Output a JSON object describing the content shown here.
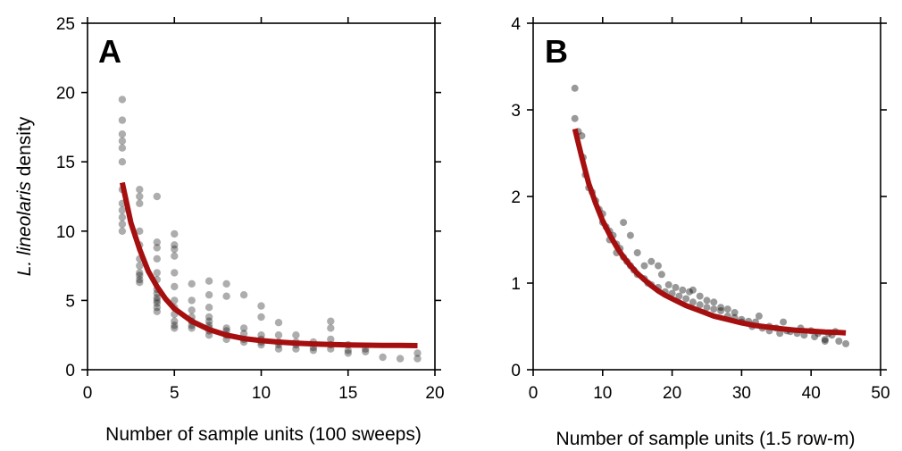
{
  "chart_data": [
    {
      "type": "scatter",
      "panel_label": "A",
      "xlabel": "Number of sample units (100 sweeps)",
      "ylabel_italic": "L. lineolaris",
      "ylabel_rest": " density",
      "xlim": [
        0,
        20
      ],
      "ylim": [
        0,
        25
      ],
      "x_ticks": [
        0,
        5,
        10,
        15,
        20
      ],
      "y_ticks": [
        0,
        5,
        10,
        15,
        20,
        25
      ],
      "grid": false,
      "point_color": "#000000",
      "line_color": "#a50f0f",
      "series": [
        {
          "kind": "points",
          "points": [
            [
              2,
              19.5
            ],
            [
              2,
              18
            ],
            [
              2,
              17
            ],
            [
              2,
              16.5
            ],
            [
              2,
              16
            ],
            [
              2,
              15
            ],
            [
              2,
              13
            ],
            [
              2,
              12
            ],
            [
              2,
              11.5
            ],
            [
              2,
              11
            ],
            [
              2,
              10.5
            ],
            [
              2,
              10
            ],
            [
              3,
              13
            ],
            [
              3,
              12.5
            ],
            [
              3,
              12
            ],
            [
              3,
              10
            ],
            [
              3,
              9
            ],
            [
              3,
              8
            ],
            [
              3,
              7.5
            ],
            [
              3,
              7
            ],
            [
              3,
              6.8
            ],
            [
              3,
              6.5
            ],
            [
              3,
              6.3
            ],
            [
              4,
              12.5
            ],
            [
              4,
              9.2
            ],
            [
              4,
              8.8
            ],
            [
              4,
              8
            ],
            [
              4,
              7
            ],
            [
              4,
              6.5
            ],
            [
              4,
              5.8
            ],
            [
              4,
              5.5
            ],
            [
              4,
              5.2
            ],
            [
              4,
              5
            ],
            [
              4,
              4.8
            ],
            [
              4,
              4.5
            ],
            [
              4,
              4.2
            ],
            [
              5,
              9.8
            ],
            [
              5,
              9
            ],
            [
              5,
              8.7
            ],
            [
              5,
              8.2
            ],
            [
              5,
              7
            ],
            [
              5,
              6
            ],
            [
              5,
              5
            ],
            [
              5,
              4.5
            ],
            [
              5,
              4
            ],
            [
              5,
              3.5
            ],
            [
              5,
              3.2
            ],
            [
              5,
              3
            ],
            [
              6,
              6.2
            ],
            [
              6,
              5
            ],
            [
              6,
              4.3
            ],
            [
              6,
              3.8
            ],
            [
              6,
              3.5
            ],
            [
              6,
              3.2
            ],
            [
              6,
              3
            ],
            [
              7,
              6.4
            ],
            [
              7,
              5.4
            ],
            [
              7,
              4.5
            ],
            [
              7,
              3.8
            ],
            [
              7,
              3.5
            ],
            [
              7,
              3.2
            ],
            [
              7,
              3
            ],
            [
              7,
              2.8
            ],
            [
              7,
              2.5
            ],
            [
              8,
              6.2
            ],
            [
              8,
              5.3
            ],
            [
              8,
              3
            ],
            [
              8,
              2.8
            ],
            [
              8,
              2.5
            ],
            [
              8,
              2.2
            ],
            [
              9,
              5.4
            ],
            [
              9,
              3
            ],
            [
              9,
              2.6
            ],
            [
              9,
              2.2
            ],
            [
              9,
              2
            ],
            [
              10,
              4.6
            ],
            [
              10,
              3.8
            ],
            [
              10,
              2.5
            ],
            [
              10,
              2.2
            ],
            [
              10,
              2
            ],
            [
              10,
              1.8
            ],
            [
              11,
              3.4
            ],
            [
              11,
              2.5
            ],
            [
              11,
              2
            ],
            [
              11,
              1.8
            ],
            [
              11,
              1.5
            ],
            [
              12,
              2.5
            ],
            [
              12,
              2
            ],
            [
              12,
              1.8
            ],
            [
              12,
              1.5
            ],
            [
              13,
              2
            ],
            [
              13,
              1.6
            ],
            [
              13,
              1.4
            ],
            [
              14,
              3.5
            ],
            [
              14,
              3
            ],
            [
              14,
              2.2
            ],
            [
              14,
              1.8
            ],
            [
              14,
              1.5
            ],
            [
              15,
              1.8
            ],
            [
              15,
              1.4
            ],
            [
              15,
              1.2
            ],
            [
              16,
              1.5
            ],
            [
              16,
              1.3
            ],
            [
              17,
              0.9
            ],
            [
              18,
              0.8
            ],
            [
              19,
              1.2
            ],
            [
              19,
              0.8
            ]
          ]
        },
        {
          "kind": "fit-line",
          "points": [
            [
              2,
              13.5
            ],
            [
              2.5,
              10.6
            ],
            [
              3,
              8.7
            ],
            [
              3.5,
              7.1
            ],
            [
              4,
              6
            ],
            [
              4.5,
              5.1
            ],
            [
              5,
              4.4
            ],
            [
              6,
              3.5
            ],
            [
              7,
              2.9
            ],
            [
              8,
              2.5
            ],
            [
              9,
              2.25
            ],
            [
              10,
              2.1
            ],
            [
              11,
              2
            ],
            [
              12,
              1.92
            ],
            [
              13,
              1.86
            ],
            [
              14,
              1.82
            ],
            [
              15,
              1.79
            ],
            [
              16,
              1.77
            ],
            [
              17,
              1.76
            ],
            [
              18,
              1.75
            ],
            [
              19,
              1.74
            ]
          ]
        }
      ]
    },
    {
      "type": "scatter",
      "panel_label": "B",
      "xlabel": "Number of sample units (1.5 row-m)",
      "xlim": [
        0,
        50
      ],
      "ylim": [
        0,
        4
      ],
      "x_ticks": [
        0,
        10,
        20,
        30,
        40,
        50
      ],
      "y_ticks": [
        0,
        1,
        2,
        3,
        4
      ],
      "grid": false,
      "point_color": "#000000",
      "line_color": "#a50f0f",
      "series": [
        {
          "kind": "points",
          "points": [
            [
              6,
              3.25
            ],
            [
              6,
              2.9
            ],
            [
              6.5,
              2.75
            ],
            [
              7,
              2.7
            ],
            [
              7.2,
              2.45
            ],
            [
              7.5,
              2.25
            ],
            [
              8,
              2.1
            ],
            [
              8.5,
              2.05
            ],
            [
              9,
              1.95
            ],
            [
              9.5,
              1.85
            ],
            [
              10,
              1.8
            ],
            [
              10,
              1.7
            ],
            [
              10.5,
              1.65
            ],
            [
              11,
              1.6
            ],
            [
              11,
              1.5
            ],
            [
              11.5,
              1.55
            ],
            [
              12,
              1.45
            ],
            [
              12,
              1.35
            ],
            [
              12.5,
              1.4
            ],
            [
              13,
              1.7
            ],
            [
              13,
              1.3
            ],
            [
              13.5,
              1.25
            ],
            [
              14,
              1.55
            ],
            [
              14,
              1.2
            ],
            [
              14.5,
              1.15
            ],
            [
              15,
              1.35
            ],
            [
              15,
              1.1
            ],
            [
              16,
              1.2
            ],
            [
              16,
              1.05
            ],
            [
              16.5,
              1.0
            ],
            [
              17,
              1.25
            ],
            [
              17,
              0.98
            ],
            [
              18,
              1.2
            ],
            [
              18,
              0.95
            ],
            [
              18.5,
              1.1
            ],
            [
              19,
              0.9
            ],
            [
              19.5,
              0.98
            ],
            [
              20,
              0.88
            ],
            [
              20.5,
              0.95
            ],
            [
              21,
              0.85
            ],
            [
              21.5,
              0.92
            ],
            [
              22,
              0.82
            ],
            [
              22.5,
              0.9
            ],
            [
              23,
              0.78
            ],
            [
              23,
              0.92
            ],
            [
              24,
              0.75
            ],
            [
              24,
              0.85
            ],
            [
              25,
              0.72
            ],
            [
              25,
              0.8
            ],
            [
              26,
              0.7
            ],
            [
              26,
              0.78
            ],
            [
              27,
              0.68
            ],
            [
              27,
              0.72
            ],
            [
              28,
              0.62
            ],
            [
              28,
              0.7
            ],
            [
              29,
              0.6
            ],
            [
              29,
              0.66
            ],
            [
              30,
              0.58
            ],
            [
              30,
              0.55
            ],
            [
              31,
              0.56
            ],
            [
              31.5,
              0.5
            ],
            [
              32,
              0.55
            ],
            [
              32.5,
              0.62
            ],
            [
              33,
              0.48
            ],
            [
              34,
              0.5
            ],
            [
              34,
              0.45
            ],
            [
              35,
              0.48
            ],
            [
              35.5,
              0.42
            ],
            [
              36,
              0.55
            ],
            [
              36.5,
              0.45
            ],
            [
              37,
              0.44
            ],
            [
              38,
              0.42
            ],
            [
              38.5,
              0.48
            ],
            [
              39,
              0.4
            ],
            [
              40,
              0.45
            ],
            [
              40.5,
              0.38
            ],
            [
              41,
              0.42
            ],
            [
              42,
              0.35
            ],
            [
              42.5,
              0.42
            ],
            [
              43,
              0.4
            ],
            [
              43.5,
              0.44
            ],
            [
              44,
              0.33
            ],
            [
              45,
              0.3
            ],
            [
              42,
              0.33
            ]
          ]
        },
        {
          "kind": "fit-line",
          "points": [
            [
              6,
              2.78
            ],
            [
              7,
              2.45
            ],
            [
              8,
              2.15
            ],
            [
              9,
              1.92
            ],
            [
              10,
              1.72
            ],
            [
              11,
              1.56
            ],
            [
              12,
              1.42
            ],
            [
              13,
              1.3
            ],
            [
              14,
              1.2
            ],
            [
              15,
              1.11
            ],
            [
              16,
              1.04
            ],
            [
              17,
              0.97
            ],
            [
              18,
              0.91
            ],
            [
              19,
              0.86
            ],
            [
              20,
              0.82
            ],
            [
              22,
              0.74
            ],
            [
              24,
              0.68
            ],
            [
              26,
              0.62
            ],
            [
              28,
              0.58
            ],
            [
              30,
              0.54
            ],
            [
              32,
              0.51
            ],
            [
              34,
              0.49
            ],
            [
              36,
              0.47
            ],
            [
              38,
              0.455
            ],
            [
              40,
              0.445
            ],
            [
              42,
              0.435
            ],
            [
              44,
              0.43
            ],
            [
              45,
              0.425
            ]
          ]
        }
      ]
    }
  ]
}
